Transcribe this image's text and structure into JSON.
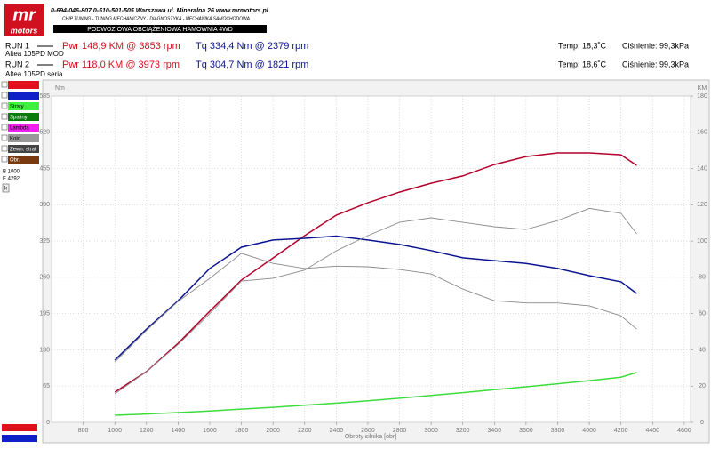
{
  "header": {
    "logo_top": "mr",
    "logo_bottom": "motors",
    "contact": "0-694-046-807   0-510-501-505   Warszawa ul. Mineralna 26   www.mrmotors.pl",
    "services": "CHIP TUNING - TUNING MECHANICZNY - DIAGNOSTYKA - MECHANIKA SAMOCHODOWA",
    "banner": "PODWOZIOWA OBCIĄŻENIOWA HAMOWNIA 4WD"
  },
  "runs": [
    {
      "run": "RUN 1",
      "car": "Altea 105PD MOD",
      "power": "Pwr  148,9 KM @ 3853 rpm",
      "torque": "Tq  334,4 Nm @ 2379 rpm",
      "temp": "Temp: 18,3˚C",
      "pressure": "Ciśnienie: 99,3kPa"
    },
    {
      "run": "RUN 2",
      "car": "Altea 105PD seria",
      "power": "Pwr  118,0 KM @ 3973 rpm",
      "torque": "Tq  304,7 Nm @ 1821 rpm",
      "temp": "Temp: 18,6˚C",
      "pressure": "Ciśnienie: 99,3kPa"
    }
  ],
  "sidebar": {
    "labels": [
      "Straty",
      "Spaliny",
      "Lambda",
      "Kolo",
      "Zewn. strat",
      "Obr."
    ],
    "begin": "B 1000",
    "end": "E 4292",
    "button": "k"
  },
  "chart_data": {
    "type": "line",
    "x_label": "Obroty silnika [obr]",
    "y_unit": "Nm",
    "y2_unit": "KM",
    "x": [
      1000,
      1200,
      1400,
      1600,
      1800,
      2000,
      2200,
      2400,
      2600,
      2800,
      3000,
      3200,
      3400,
      3600,
      3800,
      4000,
      4200,
      4300
    ],
    "xlim": [
      600,
      4640
    ],
    "xticks": [
      800,
      1000,
      1200,
      1400,
      1600,
      1800,
      2000,
      2200,
      2400,
      2600,
      2800,
      3000,
      3200,
      3400,
      3600,
      3800,
      4000,
      4200,
      4400,
      4600
    ],
    "ylim": [
      0,
      585
    ],
    "yticks": [
      0,
      65,
      130,
      195,
      260,
      325,
      390,
      455,
      520,
      585
    ],
    "y2lim": [
      0,
      180
    ],
    "y2ticks": [
      0,
      20,
      40,
      60,
      80,
      100,
      120,
      140,
      160,
      180
    ],
    "grid": true,
    "series": [
      {
        "color": "#b4002c",
        "axis": "y2",
        "values": [
          16.7,
          28,
          43.6,
          61.3,
          78.5,
          90.7,
          103,
          114.3,
          121.1,
          127,
          131.9,
          135.9,
          142.2,
          146.6,
          148.6,
          148.6,
          147.6,
          141.7
        ]
      },
      {
        "color": "#0a1490",
        "values": [
          111.6,
          167,
          218,
          276,
          314,
          327,
          330,
          334,
          327,
          319,
          308,
          295,
          290,
          285,
          276,
          263,
          252,
          231
        ]
      },
      {
        "color": "#8a8a8a",
        "axis": "y2",
        "values": [
          15.7,
          28,
          43,
          60,
          78,
          79.5,
          84,
          94.6,
          103,
          110.3,
          112.8,
          110.3,
          107.9,
          106.4,
          111.3,
          118,
          115.3,
          104
        ]
      },
      {
        "color": "#8a8a8a",
        "values": [
          108,
          165,
          217,
          258,
          303,
          285,
          276,
          280,
          279,
          274,
          266,
          239,
          218,
          214,
          214,
          209,
          191,
          167
        ]
      },
      {
        "color": "#3ddc3d",
        "axis": "y2",
        "values": [
          3.9,
          4.6,
          5.4,
          6.3,
          7.3,
          8.3,
          9.4,
          10.6,
          11.9,
          13.3,
          14.8,
          16.4,
          18.0,
          19.6,
          21.3,
          23.0,
          24.9,
          27.5
        ]
      }
    ]
  }
}
